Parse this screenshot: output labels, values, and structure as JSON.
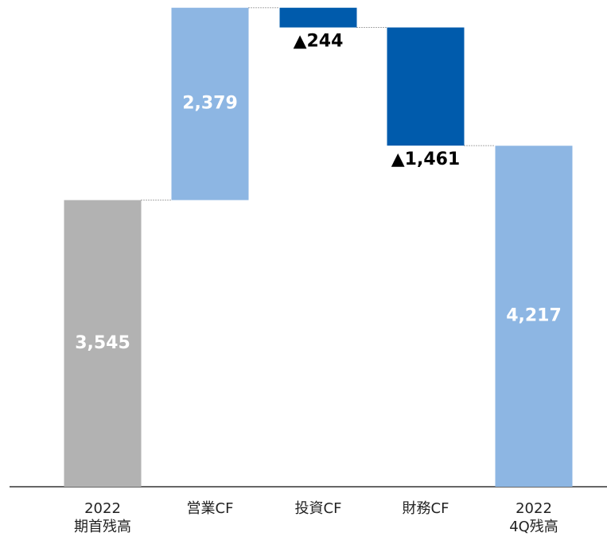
{
  "chart_data": {
    "type": "waterfall",
    "categories": [
      "2022\n期首残高",
      "営業CF",
      "投資CF",
      "財務CF",
      "2022\n4Q残高"
    ],
    "values": [
      3545,
      2379,
      -244,
      -1461,
      4217
    ],
    "value_labels": [
      "3,545",
      "2,379",
      "▲244",
      "▲1,461",
      "4,217"
    ],
    "measures": [
      "total",
      "relative",
      "relative",
      "relative",
      "total"
    ],
    "colors": [
      "#b2b2b2",
      "#8db6e3",
      "#005bac",
      "#005bac",
      "#8db6e3"
    ],
    "ylim": [
      0,
      6000
    ]
  }
}
